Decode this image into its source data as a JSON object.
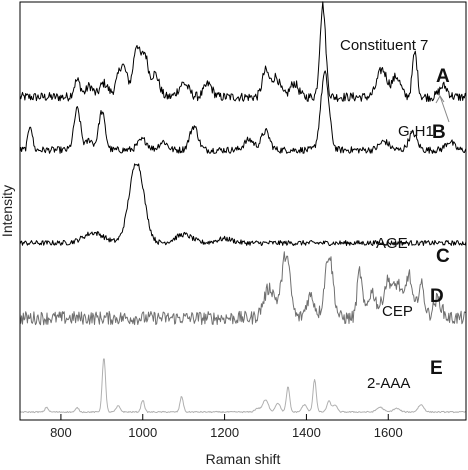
{
  "chart_data": {
    "type": "line",
    "xlabel": "Raman shift",
    "ylabel": "Intensity",
    "xlim": [
      700,
      1790
    ],
    "xticks": [
      800,
      1000,
      1200,
      1400,
      1600
    ],
    "x_tick_labels": [
      "800",
      "1000",
      "1200",
      "1400",
      "1600"
    ],
    "grid": false,
    "legend": "none",
    "series": [
      {
        "letter": "A",
        "name": "Constituent 7",
        "color": "#000000",
        "noise": 0.05,
        "peaks": [
          [
            840,
            0.18,
            8
          ],
          [
            870,
            0.12,
            8
          ],
          [
            905,
            0.15,
            10
          ],
          [
            950,
            0.35,
            12
          ],
          [
            985,
            0.55,
            8
          ],
          [
            1005,
            0.45,
            8
          ],
          [
            1030,
            0.25,
            10
          ],
          [
            1100,
            0.15,
            12
          ],
          [
            1160,
            0.14,
            10
          ],
          [
            1300,
            0.28,
            8
          ],
          [
            1325,
            0.22,
            10
          ],
          [
            1370,
            0.15,
            10
          ],
          [
            1440,
            1.0,
            7
          ],
          [
            1585,
            0.3,
            12
          ],
          [
            1620,
            0.22,
            10
          ],
          [
            1665,
            0.48,
            6
          ],
          [
            1735,
            0.12,
            10
          ]
        ]
      },
      {
        "letter": "B",
        "name": "G-H1",
        "color": "#000000",
        "noise": 0.04,
        "peaks": [
          [
            725,
            0.3,
            5
          ],
          [
            840,
            0.48,
            8
          ],
          [
            870,
            0.12,
            8
          ],
          [
            900,
            0.45,
            8
          ],
          [
            1000,
            0.12,
            12
          ],
          [
            1050,
            0.1,
            10
          ],
          [
            1125,
            0.28,
            10
          ],
          [
            1260,
            0.12,
            12
          ],
          [
            1300,
            0.22,
            10
          ],
          [
            1445,
            0.9,
            10
          ],
          [
            1590,
            0.1,
            12
          ],
          [
            1660,
            0.2,
            10
          ],
          [
            1750,
            0.1,
            10
          ]
        ]
      },
      {
        "letter": "C",
        "name": "AGE",
        "color": "#000000",
        "noise": 0.03,
        "peaks": [
          [
            880,
            0.12,
            25
          ],
          [
            985,
            0.95,
            18
          ],
          [
            1100,
            0.1,
            20
          ],
          [
            1200,
            0.05,
            20
          ]
        ]
      },
      {
        "letter": "D",
        "name": "CEP",
        "color": "#707070",
        "noise": 0.09,
        "peaks": [
          [
            1310,
            0.4,
            14
          ],
          [
            1350,
            0.85,
            10
          ],
          [
            1410,
            0.3,
            10
          ],
          [
            1455,
            0.85,
            10
          ],
          [
            1530,
            0.62,
            6
          ],
          [
            1560,
            0.35,
            10
          ],
          [
            1600,
            0.5,
            12
          ],
          [
            1625,
            0.4,
            8
          ],
          [
            1650,
            0.58,
            8
          ],
          [
            1680,
            0.45,
            8
          ],
          [
            1720,
            0.25,
            10
          ]
        ]
      },
      {
        "letter": "E",
        "name": "2-AAA",
        "color": "#b0b0b0",
        "noise": 0.01,
        "peaks": [
          [
            765,
            0.08,
            4
          ],
          [
            840,
            0.07,
            4
          ],
          [
            905,
            0.92,
            4
          ],
          [
            940,
            0.1,
            5
          ],
          [
            1000,
            0.2,
            4
          ],
          [
            1095,
            0.26,
            4
          ],
          [
            1280,
            0.06,
            6
          ],
          [
            1300,
            0.2,
            7
          ],
          [
            1330,
            0.15,
            6
          ],
          [
            1355,
            0.42,
            4
          ],
          [
            1395,
            0.12,
            6
          ],
          [
            1420,
            0.55,
            4
          ],
          [
            1455,
            0.18,
            5
          ],
          [
            1470,
            0.12,
            5
          ],
          [
            1580,
            0.08,
            8
          ],
          [
            1620,
            0.06,
            8
          ],
          [
            1680,
            0.12,
            7
          ]
        ]
      }
    ]
  }
}
